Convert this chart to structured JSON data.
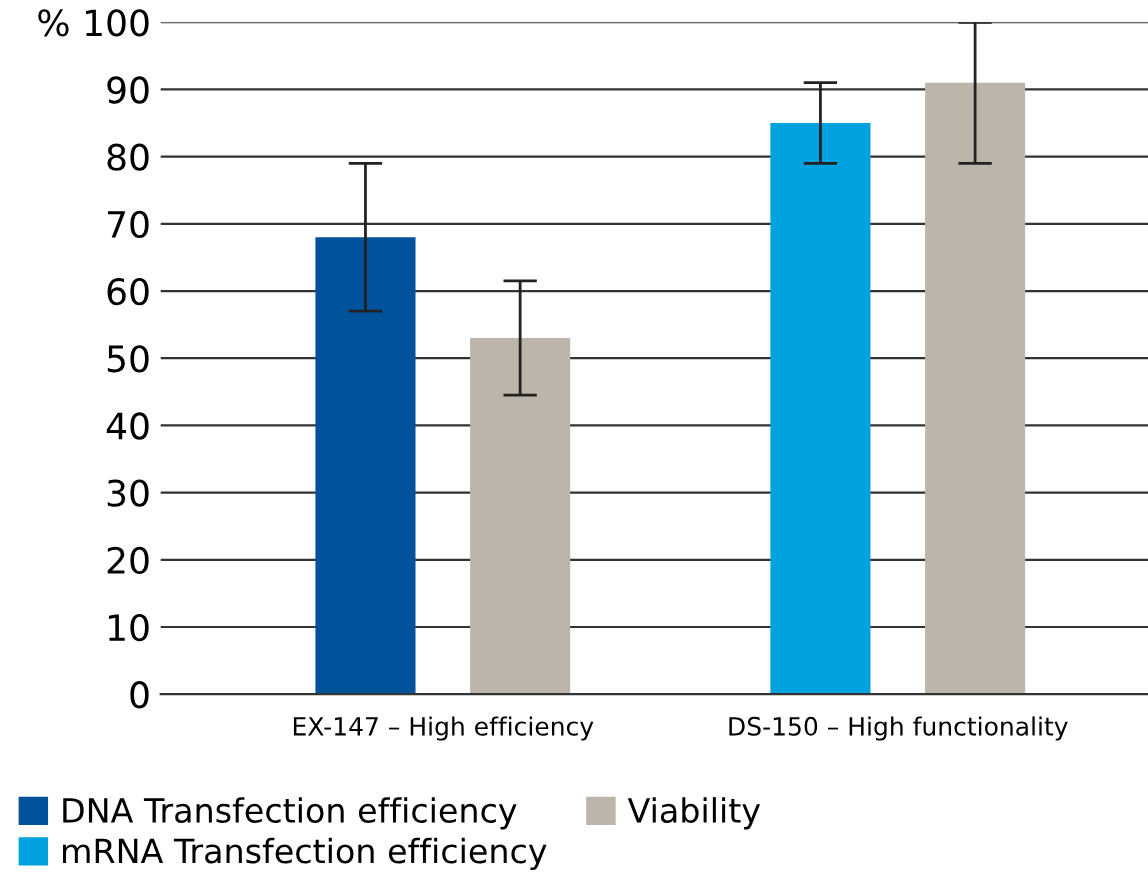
{
  "chart_data": {
    "type": "bar",
    "categories": [
      "EX-147 – High efficiency",
      "DS-150 – High functionality"
    ],
    "series": [
      {
        "name": "DNA Transfection efficiency",
        "color": "#00529b",
        "values": [
          68,
          null
        ],
        "errors": [
          11,
          null
        ]
      },
      {
        "name": "mRNA Transfection efficiency",
        "color": "#00a3e0",
        "values": [
          null,
          85
        ],
        "errors": [
          null,
          [
            79,
            91
          ]
        ]
      },
      {
        "name": "Viability",
        "color": "#bdb4aa",
        "values": [
          53,
          91
        ],
        "errors": [
          [
            44.5,
            61.5
          ],
          [
            79,
            100
          ]
        ]
      }
    ],
    "ylim": [
      0,
      100
    ],
    "yticks": [
      0,
      10,
      20,
      30,
      40,
      50,
      60,
      70,
      80,
      90,
      {
        "value": 100,
        "label": "% 100"
      }
    ],
    "grid": "y",
    "legend": "bottom"
  }
}
